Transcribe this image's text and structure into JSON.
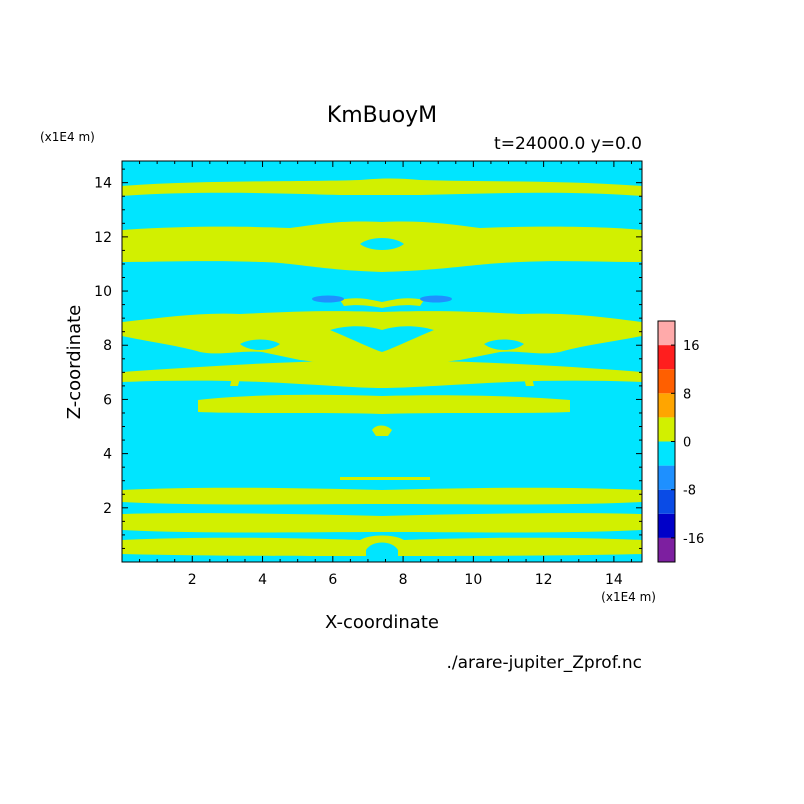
{
  "chart_data": {
    "type": "heatmap",
    "title": "KmBuoyM",
    "subtitle": "t=24000.0 y=0.0",
    "xlabel": "X-coordinate",
    "ylabel": "Z-coordinate",
    "x_unit": "(x1E4 m)",
    "y_unit": "(x1E4 m)",
    "source_file": "./arare-jupiter_Zprof.nc",
    "xlim": [
      0,
      14.8
    ],
    "ylim": [
      0,
      14.8
    ],
    "x_ticks": [
      "2",
      "4",
      "6",
      "8",
      "10",
      "12",
      "14"
    ],
    "y_ticks": [
      "2",
      "4",
      "6",
      "8",
      "10",
      "12",
      "14"
    ],
    "colorbar": {
      "tick_labels": [
        "16",
        "8",
        "0",
        "-8",
        "-16"
      ],
      "levels": [
        -20,
        -16,
        -12,
        -8,
        -4,
        0,
        4,
        8,
        12,
        16,
        20
      ],
      "colors": [
        "#7d1fa0",
        "#0000c8",
        "#0a4be6",
        "#1e90ff",
        "#00e5ff",
        "#d2f000",
        "#ffa500",
        "#ff5f00",
        "#ff1e1e",
        "#ffaaaa"
      ]
    },
    "field_summary": {
      "background_range": [
        -4,
        0
      ],
      "dominant_positive_range": [
        0,
        4
      ],
      "min_region_range": [
        -8,
        -4
      ]
    }
  }
}
